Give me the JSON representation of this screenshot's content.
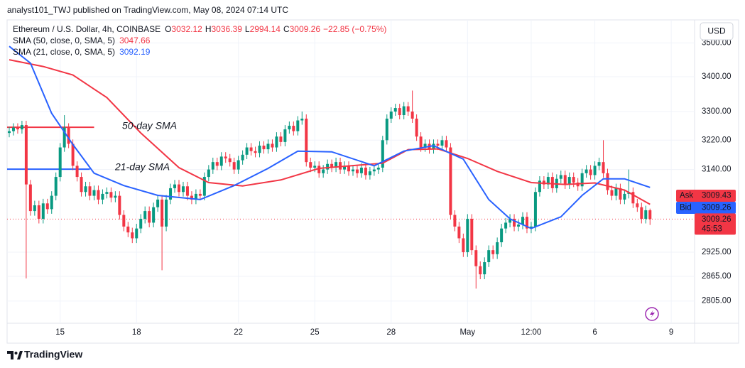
{
  "header": {
    "byline": "analyst101_TWJ published on TradingView.com, May 08, 2024 07:14 UTC"
  },
  "footer": {
    "brand": "TradingView"
  },
  "chart_data": {
    "type": "candlestick",
    "title": "Ethereum / U.S. Dollar, 4h, COINBASE",
    "legend_letters": [
      "O",
      "H",
      "L",
      "C"
    ],
    "legend_values": [
      3032.12,
      3036.39,
      2994.14,
      3009.26
    ],
    "change": "−22.85 (−0.75%)",
    "currency": "USD",
    "up_color": "#089981",
    "down_color": "#f23645",
    "open": [
      3240,
      3245,
      3255,
      3250,
      3262,
      3100,
      3030,
      3045,
      3010,
      3050,
      3035,
      3070,
      3120,
      3200,
      3255,
      3210,
      3150,
      3120,
      3080,
      3095,
      3070,
      3085,
      3060,
      3075,
      3080,
      3065,
      3070,
      3020,
      2990,
      2975,
      2960,
      2985,
      3010,
      3030,
      3000,
      3040,
      3060,
      2990,
      3060,
      3090,
      3100,
      3080,
      3095,
      3070,
      3060,
      3075,
      3070,
      3120,
      3140,
      3160,
      3150,
      3175,
      3170,
      3160,
      3140,
      3165,
      3180,
      3200,
      3190,
      3185,
      3205,
      3195,
      3210,
      3200,
      3230,
      3215,
      3250,
      3260,
      3245,
      3275,
      3280,
      3160,
      3145,
      3150,
      3130,
      3140,
      3155,
      3145,
      3160,
      3140,
      3150,
      3135,
      3140,
      3130,
      3145,
      3125,
      3135,
      3140,
      3145,
      3220,
      3280,
      3300,
      3310,
      3290,
      3315,
      3300,
      3280,
      3230,
      3200,
      3210,
      3195,
      3210,
      3205,
      3220,
      3200,
      3020,
      2990,
      2960,
      2925,
      3010,
      2930,
      2890,
      2870,
      2900,
      2930,
      2920,
      2950,
      2985,
      3000,
      3010,
      2990,
      2995,
      3015,
      2985,
      2990,
      3080,
      3110,
      3100,
      3120,
      3090,
      3115,
      3125,
      3100,
      3120,
      3105,
      3095,
      3130,
      3140,
      3125,
      3150,
      3160,
      3130,
      3085,
      3070,
      3090,
      3060,
      3075,
      3080,
      3050,
      3040,
      3010,
      3032.12
    ],
    "high": [
      3257,
      3267,
      3267,
      3274,
      3274,
      3112,
      3057,
      3057,
      3062,
      3062,
      3082,
      3132,
      3212,
      3290,
      3267,
      3222,
      3162,
      3132,
      3107,
      3107,
      3097,
      3097,
      3087,
      3092,
      3092,
      3082,
      3082,
      3032,
      3002,
      2987,
      2997,
      3022,
      3042,
      3042,
      3052,
      3072,
      3072,
      3072,
      3102,
      3112,
      3112,
      3107,
      3107,
      3082,
      3087,
      3087,
      3132,
      3152,
      3172,
      3172,
      3187,
      3187,
      3182,
      3172,
      3177,
      3192,
      3212,
      3212,
      3202,
      3217,
      3217,
      3222,
      3222,
      3242,
      3242,
      3262,
      3272,
      3272,
      3287,
      3300,
      3292,
      3172,
      3162,
      3162,
      3152,
      3167,
      3167,
      3172,
      3172,
      3162,
      3162,
      3152,
      3152,
      3157,
      3157,
      3147,
      3152,
      3157,
      3232,
      3292,
      3312,
      3322,
      3322,
      3327,
      3327,
      3360,
      3292,
      3242,
      3222,
      3222,
      3222,
      3222,
      3232,
      3232,
      3212,
      3032,
      3002,
      2972,
      3022,
      3022,
      2942,
      2902,
      2912,
      2942,
      2942,
      2962,
      2997,
      3012,
      3022,
      3022,
      3007,
      3027,
      3027,
      3002,
      3092,
      3122,
      3122,
      3132,
      3132,
      3127,
      3137,
      3137,
      3132,
      3132,
      3117,
      3142,
      3152,
      3152,
      3162,
      3172,
      3220,
      3142,
      3097,
      3102,
      3102,
      3087,
      3140,
      3092,
      3062,
      3052,
      3044,
      3036.39
    ],
    "low": [
      3228,
      3233,
      3238,
      3238,
      2860,
      3018,
      3018,
      2998,
      2998,
      3023,
      3023,
      3058,
      3108,
      3188,
      3198,
      3138,
      3108,
      3068,
      3068,
      3058,
      3058,
      3048,
      3048,
      3063,
      3053,
      3053,
      3008,
      2978,
      2963,
      2948,
      2948,
      2973,
      2998,
      2988,
      2988,
      3028,
      2880,
      2978,
      3048,
      3078,
      3068,
      3068,
      3058,
      3048,
      3048,
      3058,
      3058,
      3108,
      3128,
      3138,
      3138,
      3158,
      3148,
      3128,
      3128,
      3153,
      3168,
      3178,
      3173,
      3173,
      3183,
      3183,
      3188,
      3188,
      3203,
      3203,
      3238,
      3233,
      3233,
      3263,
      3148,
      3133,
      3133,
      3118,
      3118,
      3128,
      3133,
      3133,
      3128,
      3128,
      3123,
      3123,
      3118,
      3118,
      3113,
      3113,
      3123,
      3128,
      3133,
      3208,
      3268,
      3288,
      3278,
      3278,
      3288,
      3268,
      3218,
      3188,
      3188,
      3183,
      3183,
      3193,
      3193,
      3188,
      3008,
      2978,
      2948,
      2913,
      2913,
      2918,
      2835,
      2858,
      2858,
      2888,
      2908,
      2908,
      2938,
      2973,
      2988,
      2978,
      2978,
      2983,
      2973,
      2973,
      2978,
      3068,
      3088,
      3088,
      3078,
      3078,
      3103,
      3088,
      3088,
      3093,
      3083,
      3083,
      3118,
      3113,
      3113,
      3138,
      3118,
      3073,
      3058,
      3058,
      3048,
      3048,
      3063,
      3038,
      3028,
      2998,
      2998,
      2994.14
    ],
    "close": [
      3245,
      3255,
      3250,
      3262,
      3100,
      3030,
      3045,
      3010,
      3050,
      3035,
      3070,
      3120,
      3200,
      3255,
      3210,
      3150,
      3120,
      3080,
      3095,
      3070,
      3085,
      3060,
      3075,
      3080,
      3065,
      3070,
      3020,
      2990,
      2975,
      2960,
      2985,
      3010,
      3030,
      3000,
      3040,
      3060,
      2990,
      3060,
      3090,
      3100,
      3080,
      3095,
      3070,
      3060,
      3075,
      3070,
      3120,
      3140,
      3160,
      3150,
      3175,
      3170,
      3160,
      3140,
      3165,
      3180,
      3200,
      3190,
      3185,
      3205,
      3195,
      3210,
      3200,
      3230,
      3215,
      3250,
      3260,
      3245,
      3275,
      3280,
      3160,
      3145,
      3150,
      3130,
      3140,
      3155,
      3145,
      3160,
      3140,
      3150,
      3135,
      3140,
      3130,
      3145,
      3125,
      3135,
      3140,
      3145,
      3220,
      3280,
      3300,
      3310,
      3290,
      3315,
      3300,
      3280,
      3230,
      3200,
      3210,
      3195,
      3210,
      3205,
      3220,
      3200,
      3020,
      2990,
      2960,
      2925,
      3010,
      2930,
      2890,
      2870,
      2900,
      2930,
      2920,
      2950,
      2985,
      3000,
      3010,
      2990,
      2995,
      3015,
      2985,
      2990,
      3080,
      3110,
      3100,
      3120,
      3090,
      3115,
      3125,
      3100,
      3120,
      3105,
      3095,
      3130,
      3140,
      3125,
      3150,
      3160,
      3130,
      3085,
      3070,
      3090,
      3060,
      3075,
      3080,
      3050,
      3040,
      3010,
      3032.12,
      3009.26
    ],
    "series": [
      {
        "name": "SMA (50, close, 0, SMA, 5)",
        "color": "#f23645",
        "x": [
          0,
          8,
          15,
          23,
          31,
          40,
          47,
          55,
          64,
          73,
          88,
          94,
          101,
          108,
          115,
          123,
          131,
          138,
          145,
          151
        ],
        "values": [
          3450,
          3430,
          3405,
          3340,
          3240,
          3145,
          3105,
          3096,
          3112,
          3143,
          3157,
          3194,
          3196,
          3170,
          3135,
          3105,
          3100,
          3104,
          3085,
          3047.66
        ]
      },
      {
        "name": "SMA (21, close, 0, SMA, 5)",
        "color": "#2962ff",
        "x": [
          0,
          5,
          10,
          15,
          20,
          27,
          35,
          45,
          53,
          61,
          68,
          76,
          86,
          93,
          100,
          107,
          113,
          118,
          123,
          130,
          135,
          140,
          145,
          151
        ],
        "values": [
          3490,
          3440,
          3295,
          3208,
          3130,
          3097,
          3071,
          3060,
          3097,
          3143,
          3190,
          3188,
          3150,
          3190,
          3205,
          3168,
          3060,
          3010,
          2985,
          3015,
          3071,
          3115,
          3115,
          3092.19
        ]
      }
    ],
    "hlines": [
      {
        "value": 3256,
        "color": "#f23645",
        "x": [
          0,
          20
        ]
      },
      {
        "value": 3141,
        "color": "#2962ff",
        "x": [
          0,
          19
        ]
      }
    ],
    "annotations": [
      {
        "text": "50-day SMA",
        "color": "#f23645"
      },
      {
        "text": "21-day SMA",
        "color": "#2962ff"
      }
    ],
    "ask": {
      "label": "Ask",
      "value": 3009.43,
      "color": "#f23645"
    },
    "bid": {
      "label": "Bid",
      "value": 3009.26,
      "color": "#2962ff"
    },
    "last_price": 3009.26,
    "countdown": "45:53",
    "xlim": [
      -0.5,
      161.5
    ],
    "xticks": [
      {
        "value": 12,
        "label": "15"
      },
      {
        "value": 30,
        "label": "18"
      },
      {
        "value": 54,
        "label": "22"
      },
      {
        "value": 72,
        "label": "25"
      },
      {
        "value": 90,
        "label": "28"
      },
      {
        "value": 108,
        "label": "May"
      },
      {
        "value": 123,
        "label": "12:00"
      },
      {
        "value": 138,
        "label": "6"
      },
      {
        "value": 156,
        "label": "9"
      }
    ],
    "ylim": [
      2752,
      3570
    ],
    "log_scale": true,
    "yticks": [
      {
        "value": 3500,
        "label": "3500.00"
      },
      {
        "value": 3400,
        "label": "3400.00"
      },
      {
        "value": 3300,
        "label": "3300.00"
      },
      {
        "value": 3220,
        "label": "3220.00"
      },
      {
        "value": 3140,
        "label": "3140.00"
      },
      {
        "value": 2925,
        "label": "2925.00"
      },
      {
        "value": 2865,
        "label": "2865.00"
      },
      {
        "value": 2805,
        "label": "2805.00"
      }
    ],
    "grid": true
  }
}
